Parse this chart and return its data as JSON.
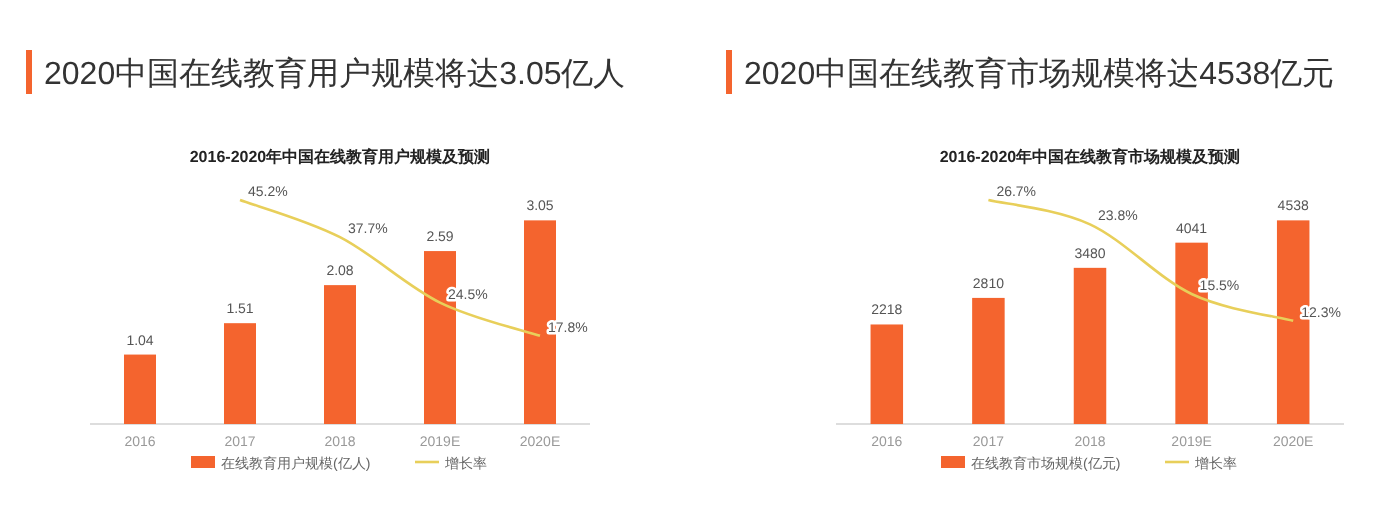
{
  "chart_data": [
    {
      "type": "bar",
      "title": "2020中国在线教育用户规模将达3.05亿人",
      "subtitle": "2016-2020年中国在线教育用户规模及预测",
      "categories": [
        "2016",
        "2017",
        "2018",
        "2019E",
        "2020E"
      ],
      "series": [
        {
          "name": "在线教育用户规模(亿人)",
          "color": "#f4642e",
          "values": [
            1.04,
            1.51,
            2.08,
            2.59,
            3.05
          ],
          "data_labels": true
        },
        {
          "name": "增长率",
          "type": "line",
          "axis": "y2",
          "color": "#e8cf5a",
          "values": [
            null,
            45.2,
            37.7,
            24.5,
            17.8
          ],
          "value_labels": [
            null,
            "45.2%",
            "37.7%",
            "24.5%",
            "17.8%"
          ]
        }
      ],
      "tick_labels": "x",
      "legend": "bottom",
      "marker": "none"
    },
    {
      "type": "bar",
      "title": "2020中国在线教育市场规模将达4538亿元",
      "subtitle": "2016-2020年中国在线教育市场规模及预测",
      "categories": [
        "2016",
        "2017",
        "2018",
        "2019E",
        "2020E"
      ],
      "series": [
        {
          "name": "在线教育市场规模(亿元)",
          "color": "#f4642e",
          "values": [
            2218,
            2810,
            3480,
            4041,
            4538
          ],
          "data_labels": true
        },
        {
          "name": "增长率",
          "type": "line",
          "axis": "y2",
          "color": "#e8cf5a",
          "values": [
            null,
            26.7,
            23.8,
            15.5,
            12.3
          ],
          "value_labels": [
            null,
            "26.7%",
            "23.8%",
            "15.5%",
            "12.3%"
          ]
        }
      ],
      "tick_labels": "x",
      "legend": "bottom",
      "marker": "none"
    }
  ]
}
